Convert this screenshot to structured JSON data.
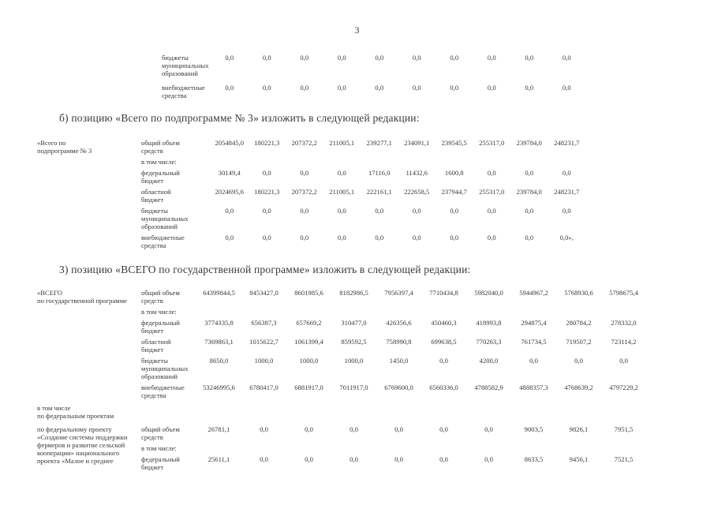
{
  "page": {
    "number": "3"
  },
  "paragraphs": {
    "b": "б) позицию «Всего по подпрограмме № 3» изложить в следующей редакции:",
    "z": "3) позицию «ВСЕГО по государственной программе» изложить в следующей редакции:"
  },
  "top_table": {
    "rows": [
      {
        "label": "бюджеты\nмуниципальных\nобразований",
        "values": [
          "0,0",
          "0,0",
          "0,0",
          "0,0",
          "0,0",
          "0,0",
          "0,0",
          "0,0",
          "0,0",
          "0,0"
        ]
      },
      {
        "label": "внебюджетные\nсредства",
        "values": [
          "0,0",
          "0,0",
          "0,0",
          "0,0",
          "0,0",
          "0,0",
          "0,0",
          "0,0",
          "0,0",
          "0,0"
        ]
      }
    ]
  },
  "subprogram3_table": {
    "title": "«Всего по\nподпрограмме № 3",
    "rows": [
      {
        "label": "общий объем\nсредств",
        "values": [
          "2054845,0",
          "180221,3",
          "207372,2",
          "211005,1",
          "239277,1",
          "234091,1",
          "239545,5",
          "255317,0",
          "239784,0",
          "248231,7"
        ]
      },
      {
        "label": "в том числе:",
        "values": []
      },
      {
        "label": "федеральный\nбюджет",
        "values": [
          "30149,4",
          "0,0",
          "0,0",
          "0,0",
          "17116,0",
          "11432,6",
          "1600,8",
          "0,0",
          "0,0",
          "0,0"
        ]
      },
      {
        "label": "областной\nбюджет",
        "values": [
          "2024695,6",
          "180221,3",
          "207372,2",
          "211005,1",
          "222161,1",
          "222658,5",
          "237944,7",
          "255317,0",
          "239784,0",
          "248231,7"
        ]
      },
      {
        "label": "бюджеты\nмуниципальных\nобразований",
        "values": [
          "0,0",
          "0,0",
          "0,0",
          "0,0",
          "0,0",
          "0,0",
          "0,0",
          "0,0",
          "0,0",
          "0,0"
        ]
      },
      {
        "label": "внебюджетные\nсредства",
        "values": [
          "0,0",
          "0,0",
          "0,0",
          "0,0",
          "0,0",
          "0,0",
          "0,0",
          "0,0",
          "0,0",
          "0,0»,"
        ]
      }
    ]
  },
  "program_table": {
    "title": "«ВСЕГО\nпо государственной программе",
    "rows": [
      {
        "label": "общий объем\nсредств",
        "values": [
          "64399844,5",
          "8453427,0",
          "8601985,6",
          "8182986,5",
          "7956397,4",
          "7710434,8",
          "5982040,0",
          "5944967,2",
          "5768930,6",
          "5798675,4"
        ]
      },
      {
        "label": "в том числе:",
        "values": []
      },
      {
        "label": "федеральный\nбюджет",
        "values": [
          "3774335,8",
          "656387,3",
          "657669,2",
          "310477,0",
          "426356,6",
          "450460,3",
          "418993,8",
          "294875,4",
          "280784,2",
          "278332,0"
        ]
      },
      {
        "label": "областной\nбюджет",
        "values": [
          "7369863,1",
          "1015622,7",
          "1061399,4",
          "859592,5",
          "758990,8",
          "699638,5",
          "770263,3",
          "761734,5",
          "719507,2",
          "723114,2"
        ]
      },
      {
        "label": "бюджеты\nмуниципальных\nобразований",
        "values": [
          "8650,0",
          "1000,0",
          "1000,0",
          "1000,0",
          "1450,0",
          "0,0",
          "4200,0",
          "0,0",
          "0,0",
          "0,0"
        ]
      },
      {
        "label": "внебюджетные\nсредства",
        "values": [
          "53246995,6",
          "6780417,0",
          "6881917,0",
          "7011917,0",
          "6769600,0",
          "6560336,0",
          "4788582,9",
          "4888357,3",
          "4768639,2",
          "4797229,2"
        ]
      }
    ],
    "subsection": "в том числе\nпо федеральным проектам",
    "federal_project": {
      "label": "по федеральному проекту\n«Создание системы поддержки\nфермеров и развитие сельской\nкооперации» национального\nпроекта «Малое и среднее",
      "rows": [
        {
          "label": "общий объем\nсредств",
          "values": [
            "26781,1",
            "0,0",
            "0,0",
            "0,0",
            "0,0",
            "0,0",
            "0,0",
            "9003,5",
            "9826,1",
            "7951,5"
          ]
        },
        {
          "label": "в том числе:",
          "values": []
        },
        {
          "label": "федеральный\nбюджет",
          "values": [
            "25611,1",
            "0,0",
            "0,0",
            "0,0",
            "0,0",
            "0,0",
            "0,0",
            "8633,5",
            "9456,1",
            "7521,5"
          ]
        }
      ]
    }
  }
}
